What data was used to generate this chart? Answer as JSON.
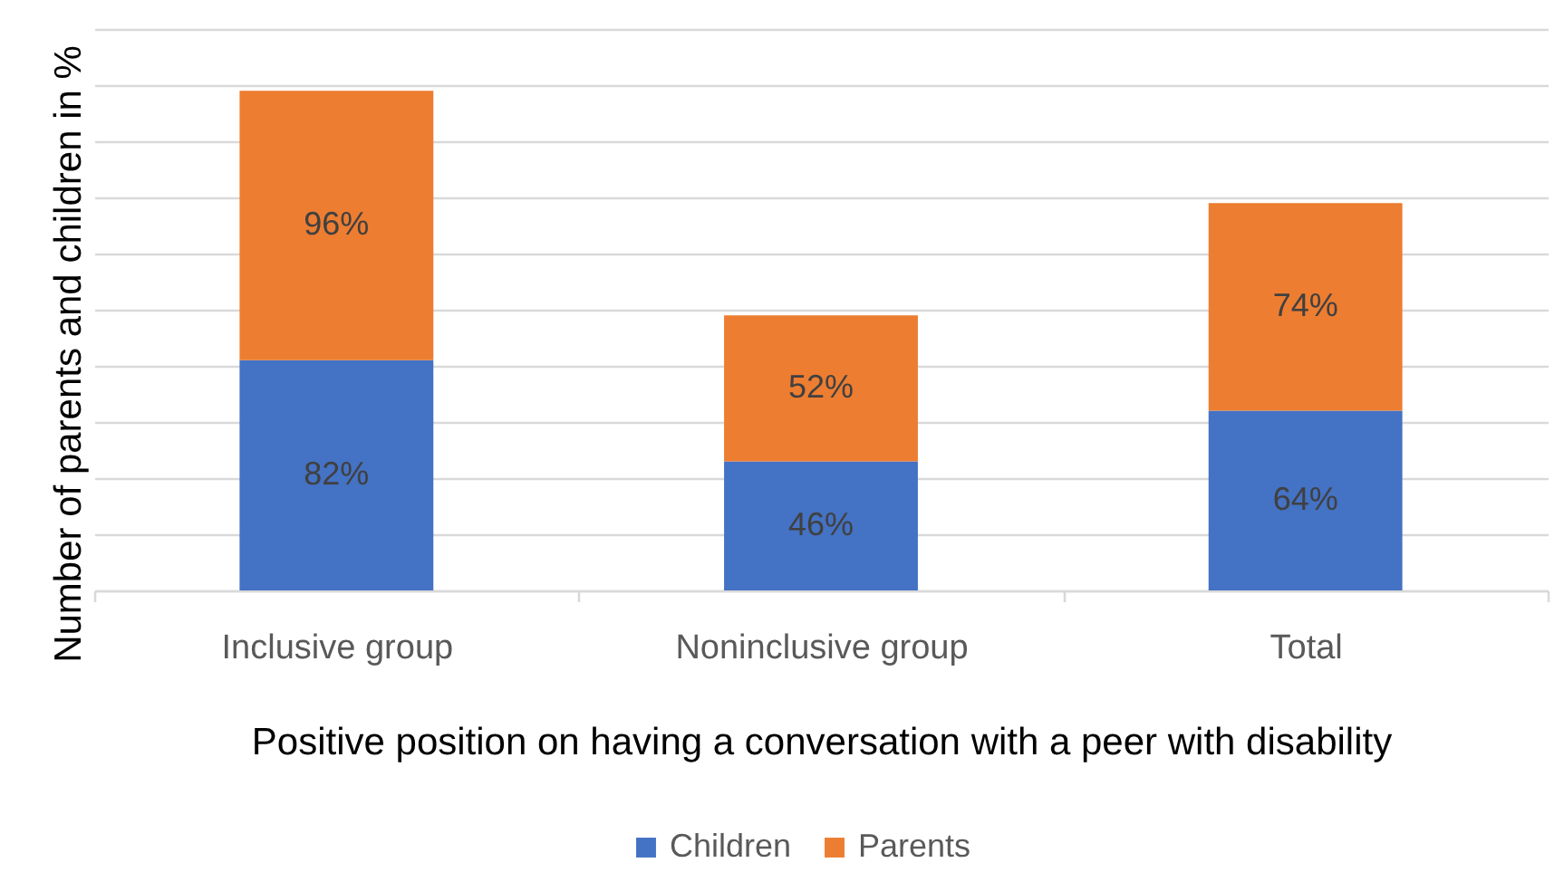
{
  "chart_data": {
    "type": "bar",
    "stacked": true,
    "xlabel": "Positive position on having a conversation with a peer with disability",
    "ylabel": "Number of parents and children in %",
    "categories": [
      "Inclusive group",
      "Noninclusive group",
      "Total"
    ],
    "series": [
      {
        "name": "Children",
        "color": "#4472c4",
        "values": [
          82,
          46,
          64
        ],
        "value_labels": [
          "82%",
          "46%",
          "64%"
        ]
      },
      {
        "name": "Parents",
        "color": "#ed7d31",
        "values": [
          96,
          52,
          74
        ],
        "value_labels": [
          "96%",
          "52%",
          "74%"
        ]
      }
    ],
    "ylim": [
      0,
      200
    ],
    "yticks": [
      {
        "value": 0,
        "label": null
      },
      {
        "value": 20,
        "label": null
      },
      {
        "value": 40,
        "label": null
      },
      {
        "value": 60,
        "label": null
      },
      {
        "value": 80,
        "label": null
      },
      {
        "value": 100,
        "label": null
      },
      {
        "value": 120,
        "label": null
      },
      {
        "value": 140,
        "label": null
      },
      {
        "value": 160,
        "label": null
      },
      {
        "value": 180,
        "label": null
      },
      {
        "value": 200,
        "label": null
      }
    ],
    "grid": "y",
    "legend": "bottom",
    "tick_labels": "x"
  }
}
